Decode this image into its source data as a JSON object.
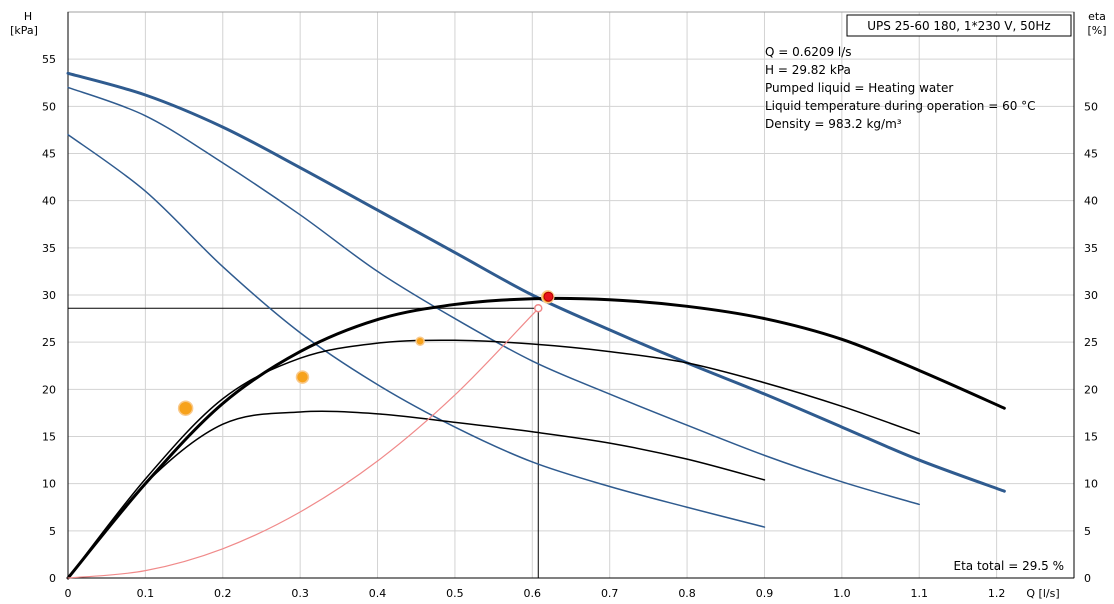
{
  "chart_data": {
    "type": "line",
    "title": "UPS 25-60 180, 1*230 V, 50Hz",
    "xlabel": "Q [l/s]",
    "ylabel_left": [
      "H",
      "[kPa]"
    ],
    "ylabel_right": [
      "eta",
      "[%]"
    ],
    "xlim": [
      0,
      1.3
    ],
    "ylim": [
      0,
      60
    ],
    "x_ticks": [
      "0",
      "0.1",
      "0.2",
      "0.3",
      "0.4",
      "0.5",
      "0.6",
      "0.7",
      "0.8",
      "0.9",
      "1.0",
      "1.1",
      "1.2"
    ],
    "y_ticks_left": [
      "0",
      "5",
      "10",
      "15",
      "20",
      "25",
      "30",
      "35",
      "40",
      "45",
      "50",
      "55"
    ],
    "y_ticks_right": [
      "0",
      "5",
      "10",
      "15",
      "20",
      "25",
      "30",
      "35",
      "40",
      "45",
      "50"
    ],
    "grid": true,
    "info_lines": [
      "Q = 0.6209 l/s",
      "H = 29.82 kPa",
      "Pumped liquid = Heating water",
      "Liquid temperature during operation = 60 °C",
      "Density = 983.2 kg/m³"
    ],
    "footer": "Eta total = 29.5 %",
    "colors": {
      "head": "#2f5b8f",
      "efficiency": "#000000",
      "system": "#f08a8a",
      "marker": "#f7a21b",
      "duty": "#e8141c"
    },
    "series": [
      {
        "kind": "head",
        "width": 3,
        "x": [
          0,
          0.1,
          0.2,
          0.3,
          0.4,
          0.5,
          0.6,
          0.7,
          0.8,
          0.9,
          1.0,
          1.1,
          1.21
        ],
        "y": [
          53.5,
          51.2,
          47.8,
          43.5,
          39.0,
          34.5,
          30.0,
          26.3,
          22.8,
          19.5,
          16.0,
          12.5,
          9.2
        ]
      },
      {
        "kind": "head",
        "width": 1.5,
        "x": [
          0,
          0.1,
          0.2,
          0.3,
          0.4,
          0.5,
          0.6,
          0.7,
          0.8,
          0.9,
          1.0,
          1.1
        ],
        "y": [
          52.0,
          49.0,
          44.0,
          38.5,
          32.5,
          27.5,
          23.0,
          19.5,
          16.2,
          13.0,
          10.2,
          7.8
        ]
      },
      {
        "kind": "head",
        "width": 1.5,
        "x": [
          0,
          0.1,
          0.2,
          0.3,
          0.4,
          0.5,
          0.6,
          0.7,
          0.8,
          0.9
        ],
        "y": [
          47.0,
          41.0,
          33.0,
          26.0,
          20.5,
          16.0,
          12.3,
          9.7,
          7.5,
          5.4
        ]
      },
      {
        "kind": "efficiency",
        "width": 3,
        "x": [
          0,
          0.1,
          0.2,
          0.3,
          0.4,
          0.5,
          0.6,
          0.7,
          0.8,
          0.9,
          1.0,
          1.1,
          1.21
        ],
        "y": [
          0,
          10.0,
          18.5,
          24.0,
          27.4,
          29.0,
          29.6,
          29.5,
          28.8,
          27.5,
          25.3,
          22.0,
          18.0
        ]
      },
      {
        "kind": "efficiency",
        "width": 1.5,
        "x": [
          0,
          0.1,
          0.2,
          0.3,
          0.4,
          0.5,
          0.6,
          0.7,
          0.8,
          0.9,
          1.0,
          1.1
        ],
        "y": [
          0,
          10.5,
          19.0,
          23.3,
          24.9,
          25.2,
          24.8,
          24.0,
          22.8,
          20.7,
          18.2,
          15.3
        ]
      },
      {
        "kind": "efficiency",
        "width": 1.5,
        "x": [
          0,
          0.1,
          0.2,
          0.3,
          0.4,
          0.5,
          0.6,
          0.7,
          0.8,
          0.9
        ],
        "y": [
          0,
          10.0,
          16.3,
          17.6,
          17.4,
          16.5,
          15.5,
          14.3,
          12.6,
          10.4
        ]
      },
      {
        "kind": "system",
        "width": 1.2,
        "x": [
          0,
          0.1,
          0.2,
          0.3,
          0.4,
          0.5,
          0.6,
          0.6077
        ],
        "y": [
          0,
          0.78,
          3.1,
          7.0,
          12.4,
          19.4,
          27.9,
          28.6
        ]
      }
    ],
    "duty_point": {
      "x": 0.6209,
      "y": 29.82
    },
    "system_point": {
      "x": 0.6077,
      "y": 28.6
    },
    "markers": [
      {
        "x": 0.152,
        "y": 18.0,
        "r": 7
      },
      {
        "x": 0.303,
        "y": 21.3,
        "r": 6
      },
      {
        "x": 0.455,
        "y": 25.1,
        "r": 4
      },
      {
        "x": 0.62,
        "y": 29.8,
        "r": 6
      }
    ]
  }
}
